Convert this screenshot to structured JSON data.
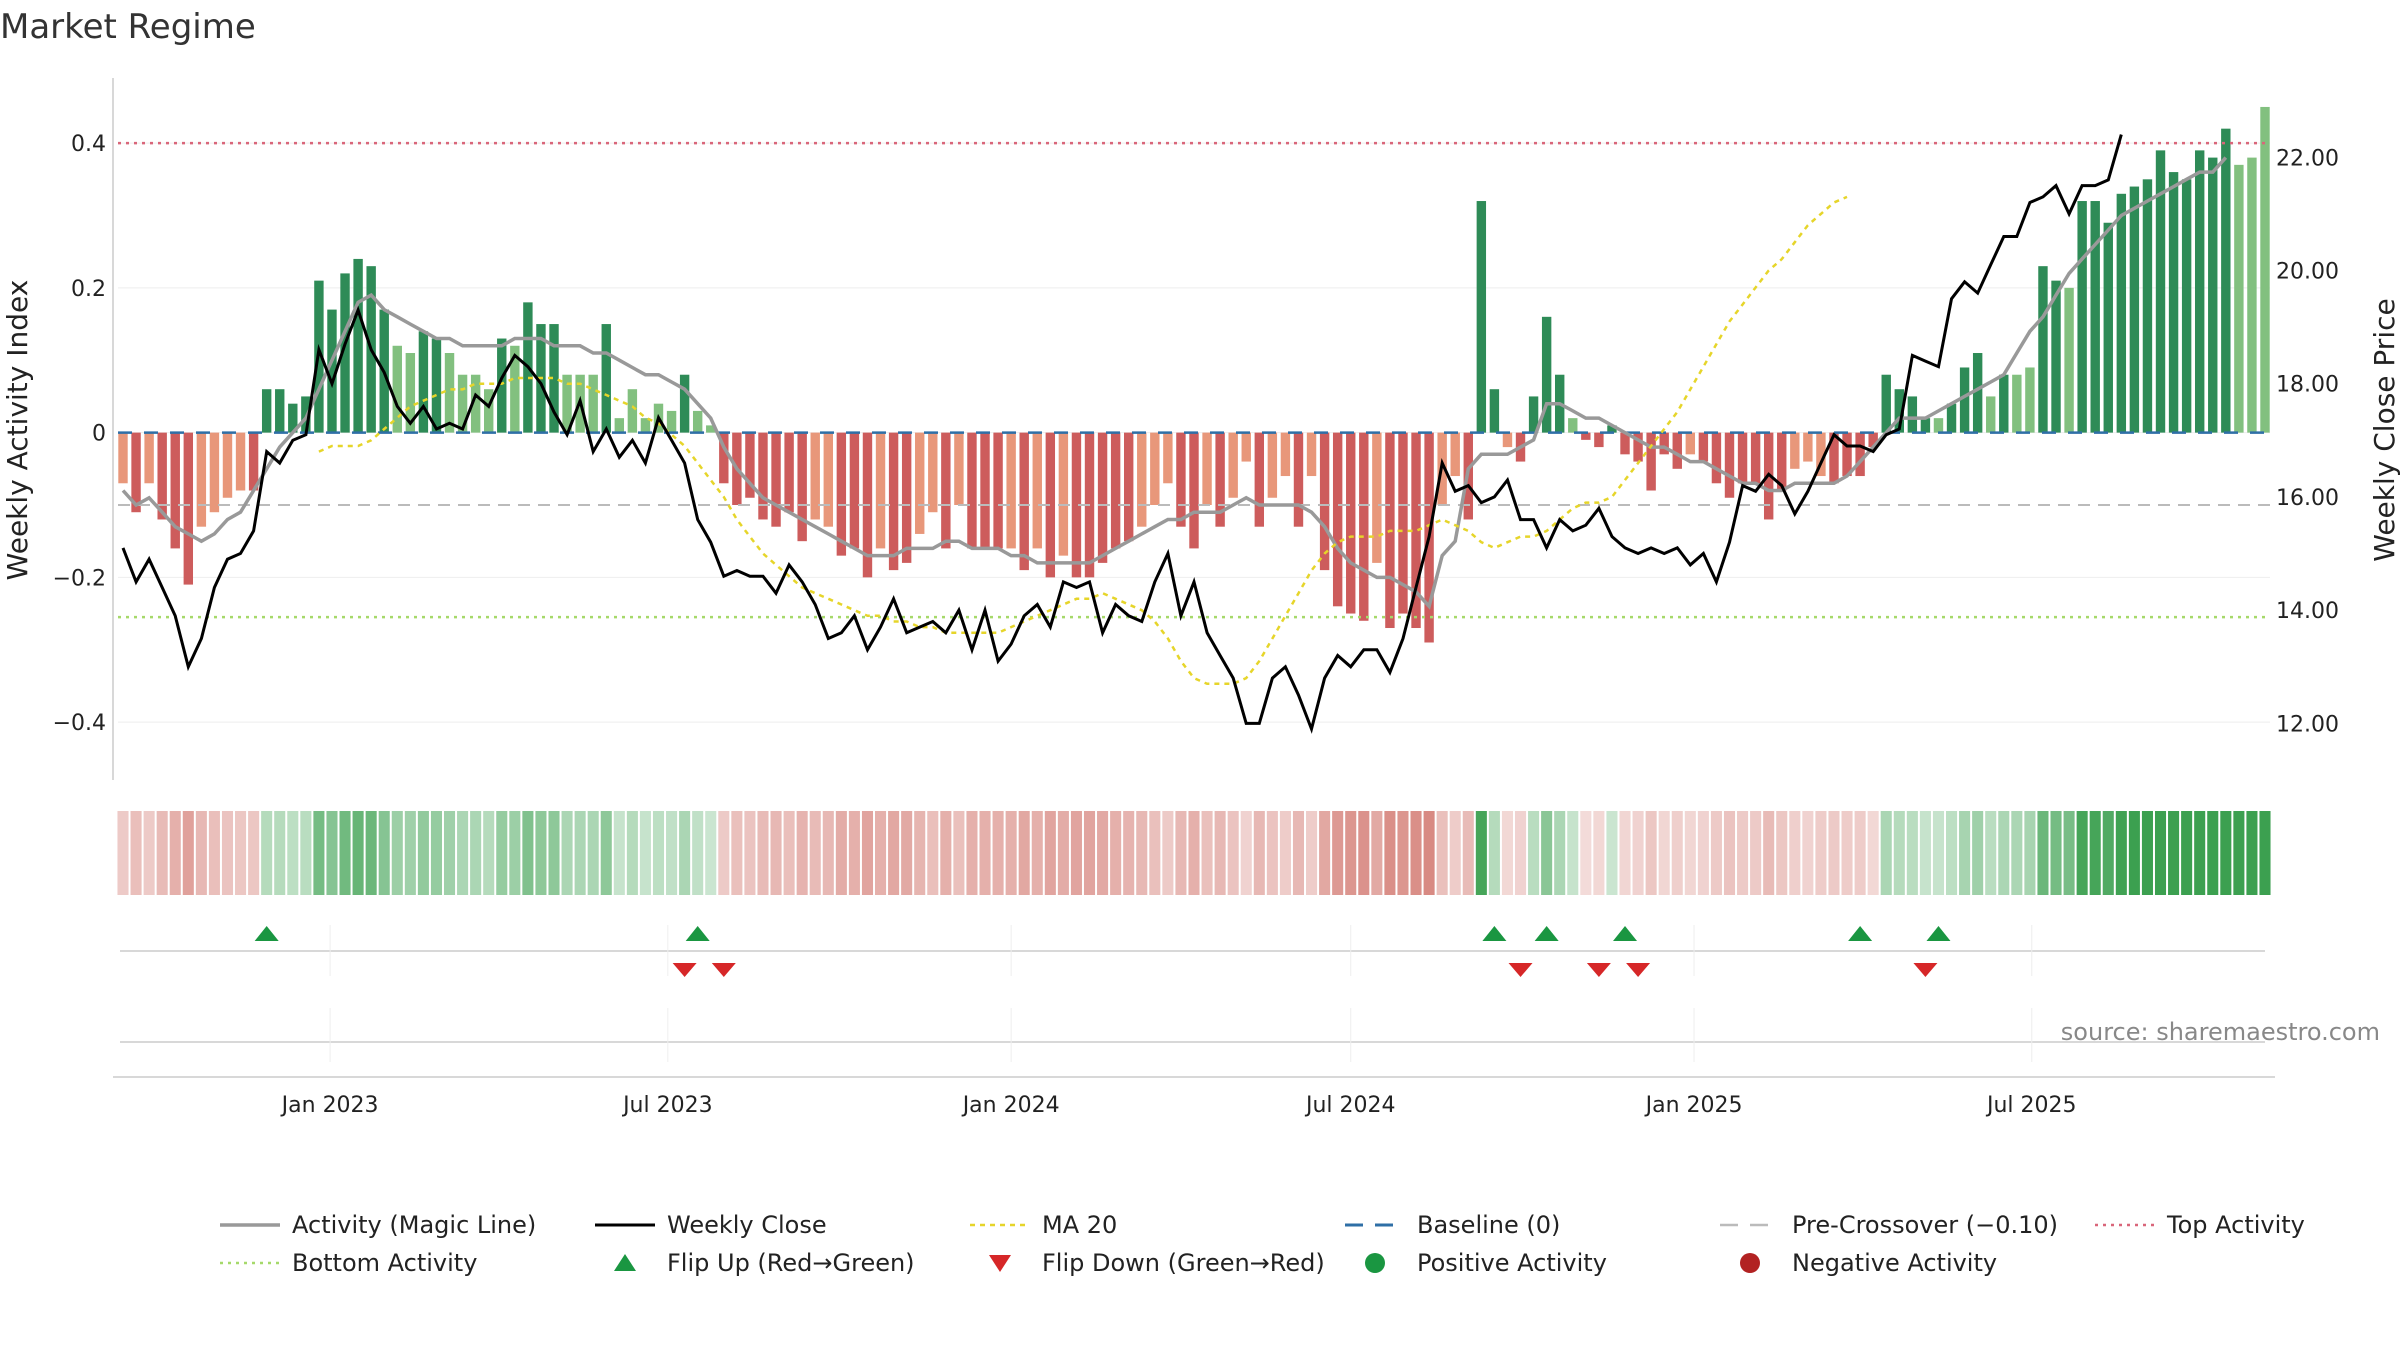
{
  "title": "Market Regime",
  "source": "source: sharemaestro.com",
  "colors": {
    "magic": "#999999",
    "close": "#000000",
    "ma20": "#e6d52a",
    "baseline": "#2f6fa6",
    "precross": "#bbbbbb",
    "top": "#d9667a",
    "bottom": "#a6d96a",
    "posStrong": "#2e8b57",
    "posLight": "#82c07f",
    "negStrong": "#cd5c5c",
    "negLight": "#e8977a",
    "flipUp": "#1a9641",
    "flipDown": "#d62728",
    "posDot": "#1a9641",
    "negDot": "#b22222"
  },
  "chart_data": {
    "type": "bar",
    "x_start": "2022-09-12",
    "x_step_days": 7,
    "y_left_label": "Weekly Activity Index",
    "y_right_label": "Weekly Close Price",
    "y_left_ticks": [
      0.4,
      0.2,
      0,
      -0.2,
      -0.4
    ],
    "y_left_tick_labels": [
      "0.4",
      "0.2",
      "0",
      "−0.2",
      "−0.4"
    ],
    "y_right_ticks": [
      22,
      20,
      18,
      16,
      14,
      12
    ],
    "y_right_tick_labels": [
      "22.00",
      "20.00",
      "18.00",
      "16.00",
      "14.00",
      "12.00"
    ],
    "y_left_range": [
      -0.48,
      0.49
    ],
    "y_right_range": [
      11.0,
      23.4
    ],
    "x_ticks": [
      {
        "date": "2023-01-01",
        "label": "Jan 2023"
      },
      {
        "date": "2023-07-01",
        "label": "Jul 2023"
      },
      {
        "date": "2024-01-01",
        "label": "Jan 2024"
      },
      {
        "date": "2024-07-01",
        "label": "Jul 2024"
      },
      {
        "date": "2025-01-01",
        "label": "Jan 2025"
      },
      {
        "date": "2025-07-01",
        "label": "Jul 2025"
      }
    ],
    "levels": {
      "top": 0.4,
      "bottom": -0.255,
      "precross": -0.1,
      "baseline": 0
    },
    "activity": [
      -0.07,
      -0.11,
      -0.07,
      -0.12,
      -0.16,
      -0.21,
      -0.13,
      -0.11,
      -0.09,
      -0.08,
      -0.08,
      0.06,
      0.06,
      0.04,
      0.05,
      0.21,
      0.17,
      0.22,
      0.24,
      0.23,
      0.17,
      0.12,
      0.11,
      0.14,
      0.13,
      0.11,
      0.08,
      0.08,
      0.06,
      0.13,
      0.12,
      0.18,
      0.15,
      0.15,
      0.08,
      0.08,
      0.08,
      0.15,
      0.02,
      0.06,
      0.02,
      0.04,
      0.03,
      0.08,
      0.03,
      0.01,
      -0.07,
      -0.1,
      -0.09,
      -0.12,
      -0.13,
      -0.11,
      -0.15,
      -0.12,
      -0.13,
      -0.17,
      -0.16,
      -0.2,
      -0.16,
      -0.19,
      -0.18,
      -0.14,
      -0.11,
      -0.16,
      -0.1,
      -0.16,
      -0.16,
      -0.16,
      -0.16,
      -0.19,
      -0.16,
      -0.2,
      -0.17,
      -0.2,
      -0.2,
      -0.18,
      -0.16,
      -0.15,
      -0.13,
      -0.1,
      -0.07,
      -0.13,
      -0.16,
      -0.1,
      -0.13,
      -0.09,
      -0.04,
      -0.13,
      -0.09,
      -0.06,
      -0.13,
      -0.06,
      -0.19,
      -0.24,
      -0.25,
      -0.26,
      -0.18,
      -0.27,
      -0.25,
      -0.27,
      -0.29,
      -0.1,
      -0.06,
      -0.12,
      0.32,
      0.06,
      -0.02,
      -0.04,
      0.05,
      0.16,
      0.08,
      0.02,
      -0.01,
      -0.02,
      0.01,
      -0.03,
      -0.04,
      -0.08,
      -0.03,
      -0.05,
      -0.03,
      -0.04,
      -0.07,
      -0.09,
      -0.07,
      -0.07,
      -0.12,
      -0.08,
      -0.05,
      -0.04,
      -0.06,
      -0.07,
      -0.06,
      -0.06,
      -0.02,
      0.08,
      0.06,
      0.05,
      0.02,
      0.02,
      0.04,
      0.09,
      0.11,
      0.05,
      0.08,
      0.08,
      0.09,
      0.23,
      0.21,
      0.2,
      0.32,
      0.32,
      0.29,
      0.33,
      0.34,
      0.35,
      0.39,
      0.36,
      0.35,
      0.39,
      0.38,
      0.42,
      0.37,
      0.38,
      0.45
    ],
    "magic_line": [
      -0.08,
      -0.1,
      -0.09,
      -0.11,
      -0.13,
      -0.14,
      -0.15,
      -0.14,
      -0.12,
      -0.11,
      -0.08,
      -0.05,
      -0.02,
      0.0,
      0.02,
      0.06,
      0.1,
      0.14,
      0.18,
      0.19,
      0.17,
      0.16,
      0.15,
      0.14,
      0.13,
      0.13,
      0.12,
      0.12,
      0.12,
      0.12,
      0.13,
      0.13,
      0.13,
      0.12,
      0.12,
      0.12,
      0.11,
      0.11,
      0.1,
      0.09,
      0.08,
      0.08,
      0.07,
      0.06,
      0.04,
      0.02,
      -0.02,
      -0.05,
      -0.07,
      -0.09,
      -0.1,
      -0.11,
      -0.12,
      -0.13,
      -0.14,
      -0.15,
      -0.16,
      -0.17,
      -0.17,
      -0.17,
      -0.16,
      -0.16,
      -0.16,
      -0.15,
      -0.15,
      -0.16,
      -0.16,
      -0.16,
      -0.17,
      -0.17,
      -0.18,
      -0.18,
      -0.18,
      -0.18,
      -0.18,
      -0.17,
      -0.16,
      -0.15,
      -0.14,
      -0.13,
      -0.12,
      -0.12,
      -0.11,
      -0.11,
      -0.11,
      -0.1,
      -0.09,
      -0.1,
      -0.1,
      -0.1,
      -0.1,
      -0.11,
      -0.13,
      -0.16,
      -0.18,
      -0.19,
      -0.2,
      -0.2,
      -0.21,
      -0.22,
      -0.24,
      -0.17,
      -0.15,
      -0.05,
      -0.03,
      -0.03,
      -0.03,
      -0.02,
      -0.01,
      0.04,
      0.04,
      0.03,
      0.02,
      0.02,
      0.01,
      0.0,
      -0.01,
      -0.02,
      -0.02,
      -0.03,
      -0.04,
      -0.04,
      -0.05,
      -0.06,
      -0.07,
      -0.07,
      -0.08,
      -0.08,
      -0.07,
      -0.07,
      -0.07,
      -0.07,
      -0.06,
      -0.04,
      -0.02,
      0.0,
      0.02,
      0.02,
      0.02,
      0.03,
      0.04,
      0.05,
      0.06,
      0.07,
      0.08,
      0.11,
      0.14,
      0.16,
      0.19,
      0.22,
      0.24,
      0.26,
      0.28,
      0.3,
      0.31,
      0.32,
      0.33,
      0.34,
      0.35,
      0.36,
      0.36,
      0.38
    ],
    "weekly_close": [
      15.1,
      14.5,
      14.9,
      14.4,
      13.9,
      13.0,
      13.5,
      14.4,
      14.9,
      15.0,
      15.4,
      16.8,
      16.6,
      17.0,
      17.1,
      18.6,
      18.0,
      18.7,
      19.3,
      18.6,
      18.2,
      17.6,
      17.3,
      17.6,
      17.2,
      17.3,
      17.2,
      17.8,
      17.6,
      18.1,
      18.5,
      18.3,
      18.0,
      17.5,
      17.1,
      17.7,
      16.8,
      17.2,
      16.7,
      17.0,
      16.6,
      17.4,
      17.0,
      16.6,
      15.6,
      15.2,
      14.6,
      14.7,
      14.6,
      14.6,
      14.3,
      14.8,
      14.5,
      14.1,
      13.5,
      13.6,
      13.9,
      13.3,
      13.7,
      14.2,
      13.6,
      13.7,
      13.8,
      13.6,
      14.0,
      13.3,
      14.0,
      13.1,
      13.4,
      13.9,
      14.1,
      13.7,
      14.5,
      14.4,
      14.5,
      13.6,
      14.1,
      13.9,
      13.8,
      14.5,
      15.0,
      13.9,
      14.5,
      13.6,
      13.2,
      12.8,
      12.0,
      12.0,
      12.8,
      13.0,
      12.5,
      11.9,
      12.8,
      13.2,
      13.0,
      13.3,
      13.3,
      12.9,
      13.5,
      14.4,
      15.3,
      16.6,
      16.1,
      16.2,
      15.9,
      16.0,
      16.3,
      15.6,
      15.6,
      15.1,
      15.6,
      15.4,
      15.5,
      15.8,
      15.3,
      15.1,
      15.0,
      15.1,
      15.0,
      15.1,
      14.8,
      15.0,
      14.5,
      15.2,
      16.2,
      16.1,
      16.4,
      16.2,
      15.7,
      16.1,
      16.6,
      17.1,
      16.9,
      16.9,
      16.8,
      17.1,
      17.2,
      18.5,
      18.4,
      18.3,
      19.5,
      19.8,
      19.6,
      20.1,
      20.6,
      20.6,
      21.2,
      21.3,
      21.5,
      21.0,
      21.5,
      21.5,
      21.6,
      22.4
    ],
    "ma20": [
      null,
      null,
      null,
      null,
      null,
      null,
      null,
      null,
      null,
      null,
      null,
      null,
      null,
      null,
      null,
      16.8,
      16.9,
      16.9,
      16.9,
      17.0,
      17.2,
      17.4,
      17.6,
      17.7,
      17.8,
      17.9,
      17.9,
      18.0,
      18.0,
      18.0,
      18.1,
      18.1,
      18.1,
      18.1,
      18.0,
      18.0,
      17.9,
      17.8,
      17.7,
      17.6,
      17.4,
      17.3,
      17.1,
      16.9,
      16.6,
      16.3,
      16.0,
      15.6,
      15.3,
      15.0,
      14.8,
      14.6,
      14.4,
      14.3,
      14.2,
      14.1,
      14.0,
      13.9,
      13.9,
      13.8,
      13.8,
      13.7,
      13.7,
      13.6,
      13.6,
      13.6,
      13.6,
      13.6,
      13.7,
      13.8,
      13.9,
      14.0,
      14.1,
      14.2,
      14.2,
      14.3,
      14.2,
      14.1,
      14.0,
      13.8,
      13.5,
      13.1,
      12.8,
      12.7,
      12.7,
      12.7,
      12.8,
      13.1,
      13.5,
      13.9,
      14.3,
      14.7,
      15.0,
      15.2,
      15.3,
      15.3,
      15.3,
      15.4,
      15.4,
      15.4,
      15.5,
      15.6,
      15.5,
      15.4,
      15.2,
      15.1,
      15.2,
      15.3,
      15.3,
      15.4,
      15.6,
      15.8,
      15.9,
      15.9,
      16.0,
      16.3,
      16.6,
      16.9,
      17.2,
      17.5,
      17.9,
      18.3,
      18.7,
      19.1,
      19.4,
      19.7,
      20.0,
      20.2,
      20.5,
      20.8,
      21.0,
      21.2,
      21.3
    ],
    "flips_up_idx": [
      11,
      44,
      105,
      109,
      115,
      133,
      139
    ],
    "flips_down_idx": [
      43,
      46,
      107,
      113,
      116,
      138
    ],
    "legend": [
      [
        "Activity (Magic Line)",
        "Weekly Close",
        "MA 20",
        "Baseline (0)",
        "Pre-Crossover (−0.10)",
        "Top Activity"
      ],
      [
        "Bottom Activity",
        "Flip Up (Red→Green)",
        "Flip Down (Green→Red)",
        "Positive Activity",
        "Negative Activity"
      ]
    ]
  }
}
